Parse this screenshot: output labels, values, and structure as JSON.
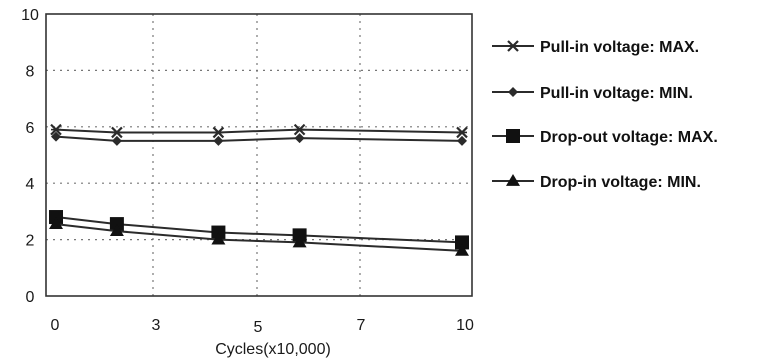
{
  "chart_data": {
    "type": "line",
    "x": [
      0,
      1.5,
      4,
      6,
      10
    ],
    "series": [
      {
        "name": "Pull-in voltage: MAX.",
        "marker": "x",
        "values": [
          5.9,
          5.8,
          5.8,
          5.9,
          5.8
        ]
      },
      {
        "name": "Pull-in voltage: MIN.",
        "marker": "diamond",
        "values": [
          5.65,
          5.5,
          5.5,
          5.6,
          5.5
        ]
      },
      {
        "name": "Drop-out voltage: MAX.",
        "marker": "square",
        "values": [
          2.8,
          2.55,
          2.25,
          2.15,
          1.9
        ]
      },
      {
        "name": "Drop-in voltage: MIN.",
        "marker": "triangle",
        "values": [
          2.55,
          2.3,
          2.0,
          1.9,
          1.6
        ]
      }
    ],
    "xlabel": "Cycles(x10,000)",
    "ylabel": "",
    "xlim": [
      0,
      10
    ],
    "ylim": [
      0,
      10
    ],
    "yticks": [
      0,
      2,
      4,
      6,
      8,
      10
    ],
    "xtick_labels": [
      "0",
      "3",
      "5",
      "7",
      "10"
    ],
    "grid": "dotted",
    "legend": "right",
    "line_color": "#2b2b2b"
  }
}
